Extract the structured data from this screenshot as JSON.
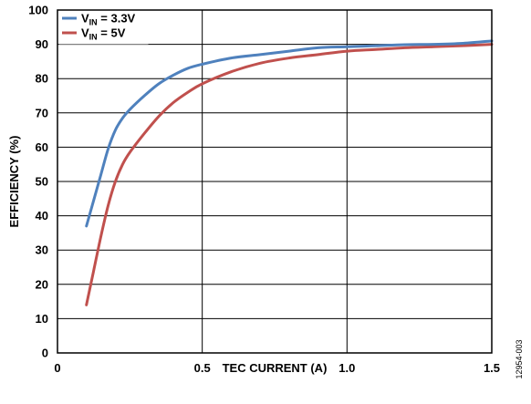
{
  "chart_data": {
    "type": "line",
    "xlabel": "TEC CURRENT (A)",
    "ylabel": "EFFICIENCY (%)",
    "xlim": [
      0,
      1.5
    ],
    "ylim": [
      0,
      100
    ],
    "x_ticks": [
      "0",
      "0.5",
      "1.0",
      "1.5"
    ],
    "x_tick_values": [
      0,
      0.5,
      1.0,
      1.5
    ],
    "y_ticks": [
      "0",
      "10",
      "20",
      "30",
      "40",
      "50",
      "60",
      "70",
      "80",
      "90",
      "100"
    ],
    "y_tick_values": [
      0,
      10,
      20,
      30,
      40,
      50,
      60,
      70,
      80,
      90,
      100
    ],
    "grid": true,
    "legend_position": "top-left",
    "series": [
      {
        "name_main": "V",
        "name_sub": "IN",
        "name_rest": " = 3.3V",
        "color": "#4F81BD",
        "x": [
          0.1,
          0.125,
          0.15,
          0.175,
          0.2,
          0.225,
          0.25,
          0.3,
          0.35,
          0.4,
          0.45,
          0.5,
          0.6,
          0.7,
          0.8,
          0.9,
          1.0,
          1.1,
          1.2,
          1.3,
          1.4,
          1.5
        ],
        "y": [
          37,
          44.5,
          52,
          59.5,
          65,
          68.5,
          71,
          75,
          78.5,
          81,
          83,
          84.2,
          86,
          87,
          88,
          89,
          89.3,
          89.6,
          89.9,
          90,
          90.3,
          91
        ]
      },
      {
        "name_main": "V",
        "name_sub": "IN",
        "name_rest": " = 5V",
        "color": "#C0504D",
        "x": [
          0.1,
          0.125,
          0.15,
          0.175,
          0.2,
          0.225,
          0.25,
          0.3,
          0.35,
          0.4,
          0.45,
          0.5,
          0.6,
          0.7,
          0.8,
          0.9,
          1.0,
          1.1,
          1.2,
          1.3,
          1.4,
          1.5
        ],
        "y": [
          14,
          24,
          34,
          43,
          50,
          55,
          58.5,
          64,
          69,
          73,
          76,
          78.5,
          82,
          84.5,
          86,
          87,
          88,
          88.5,
          89,
          89.3,
          89.6,
          90
        ]
      }
    ]
  },
  "figure_id": "12954-003"
}
